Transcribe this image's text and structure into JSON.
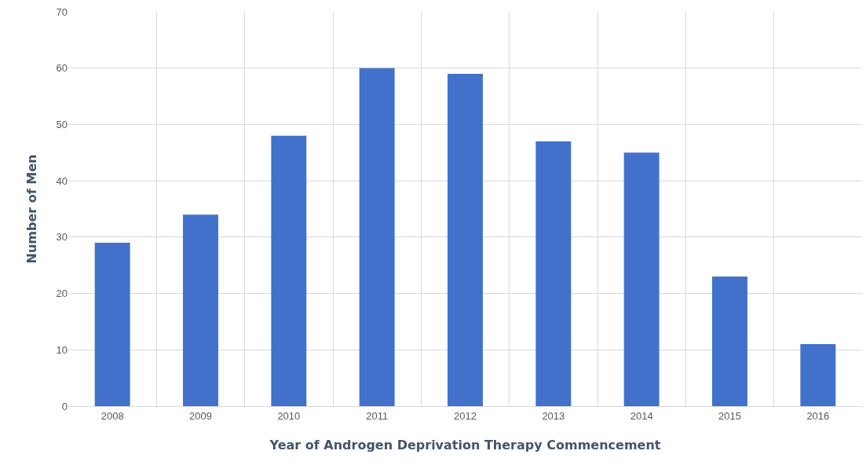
{
  "chart_data": {
    "type": "bar",
    "xlabel": "Year of Androgen Deprivation Therapy Commencement",
    "ylabel": "Number of Men",
    "categories": [
      "2008",
      "2009",
      "2010",
      "2011",
      "2012",
      "2013",
      "2014",
      "2015",
      "2016"
    ],
    "values": [
      29,
      34,
      48,
      60,
      59,
      47,
      45,
      23,
      11
    ],
    "color": "#4271cc",
    "ylim": [
      0,
      70
    ],
    "yticks": [
      0,
      10,
      20,
      30,
      40,
      50,
      60,
      70
    ],
    "grid": true,
    "legend": false
  }
}
